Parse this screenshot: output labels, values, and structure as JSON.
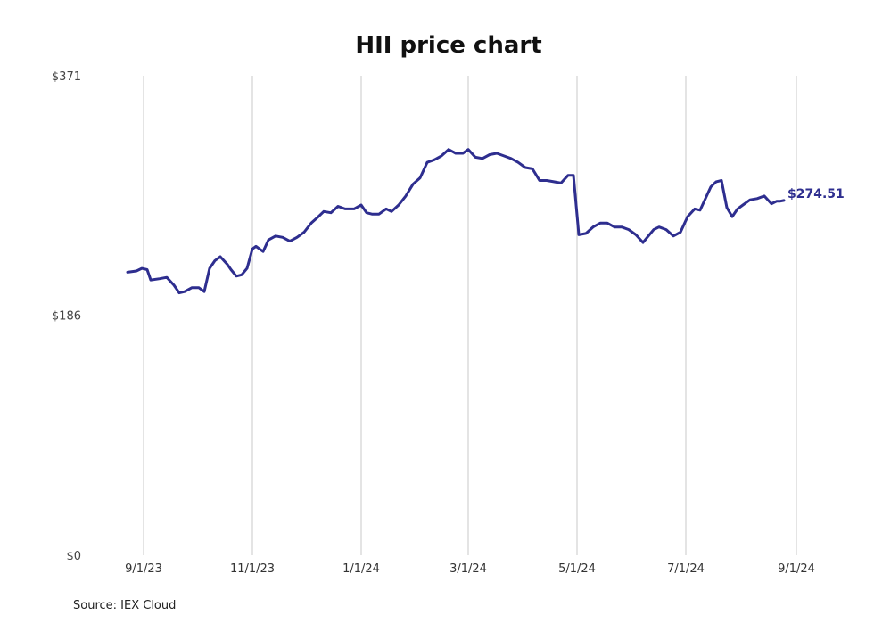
{
  "chart_data": {
    "type": "line",
    "title": "HII price chart",
    "source": "Source: IEX Cloud",
    "xlabel": "",
    "ylabel": "",
    "ylim": [
      0,
      371
    ],
    "y_ticks": [
      {
        "value": 371,
        "label": "$371"
      },
      {
        "value": 186,
        "label": "$186"
      },
      {
        "value": 0,
        "label": "$0"
      }
    ],
    "xlim": [
      "2023-08-18",
      "2024-09-01"
    ],
    "x_ticks": [
      {
        "date": "2023-09-01",
        "label": "9/1/23"
      },
      {
        "date": "2023-11-01",
        "label": "11/1/23"
      },
      {
        "date": "2024-01-01",
        "label": "1/1/24"
      },
      {
        "date": "2024-03-01",
        "label": "3/1/24"
      },
      {
        "date": "2024-05-01",
        "label": "5/1/24"
      },
      {
        "date": "2024-07-01",
        "label": "7/1/24"
      },
      {
        "date": "2024-09-01",
        "label": "9/1/24"
      }
    ],
    "grid": "vertical",
    "line_color": "#2e2e8f",
    "last_value_label": "$274.51",
    "series": [
      {
        "x": [
          "2023-08-23",
          "2023-08-28",
          "2023-08-31",
          "2023-09-03",
          "2023-09-05",
          "2023-09-10",
          "2023-09-14",
          "2023-09-18",
          "2023-09-21",
          "2023-09-24",
          "2023-09-28",
          "2023-10-02",
          "2023-10-05",
          "2023-10-08",
          "2023-10-11",
          "2023-10-14",
          "2023-10-18",
          "2023-10-20",
          "2023-10-23",
          "2023-10-26",
          "2023-10-29",
          "2023-11-01",
          "2023-11-03",
          "2023-11-07",
          "2023-11-10",
          "2023-11-14",
          "2023-11-18",
          "2023-11-22",
          "2023-11-26",
          "2023-11-30",
          "2023-12-04",
          "2023-12-08",
          "2023-12-11",
          "2023-12-15",
          "2023-12-19",
          "2023-12-23",
          "2023-12-28",
          "2024-01-01",
          "2024-01-04",
          "2024-01-07",
          "2024-01-11",
          "2024-01-15",
          "2024-01-18",
          "2024-01-22",
          "2024-01-26",
          "2024-01-30",
          "2024-02-03",
          "2024-02-07",
          "2024-02-11",
          "2024-02-15",
          "2024-02-19",
          "2024-02-23",
          "2024-02-27",
          "2024-03-01",
          "2024-03-05",
          "2024-03-09",
          "2024-03-13",
          "2024-03-17",
          "2024-03-21",
          "2024-03-25",
          "2024-03-29",
          "2024-04-02",
          "2024-04-06",
          "2024-04-10",
          "2024-04-14",
          "2024-04-18",
          "2024-04-22",
          "2024-04-26",
          "2024-04-29",
          "2024-05-02",
          "2024-05-06",
          "2024-05-10",
          "2024-05-14",
          "2024-05-18",
          "2024-05-22",
          "2024-05-26",
          "2024-05-30",
          "2024-06-03",
          "2024-06-07",
          "2024-06-10",
          "2024-06-13",
          "2024-06-16",
          "2024-06-20",
          "2024-06-24",
          "2024-06-28",
          "2024-07-02",
          "2024-07-06",
          "2024-07-09",
          "2024-07-12",
          "2024-07-15",
          "2024-07-18",
          "2024-07-21",
          "2024-07-24",
          "2024-07-27",
          "2024-07-30",
          "2024-08-02",
          "2024-08-06",
          "2024-08-10",
          "2024-08-14",
          "2024-08-18",
          "2024-08-21",
          "2024-08-23",
          "2024-08-25"
        ],
        "values": [
          219,
          220,
          222,
          221,
          213,
          214,
          215,
          209,
          203,
          204,
          207,
          207,
          204,
          222,
          228,
          231,
          225,
          221,
          216,
          217,
          222,
          237,
          239,
          235,
          244,
          247,
          246,
          243,
          246,
          250,
          257,
          262,
          266,
          265,
          270,
          268,
          268,
          271,
          265,
          264,
          264,
          268,
          266,
          271,
          278,
          287,
          292,
          304,
          306,
          309,
          314,
          311,
          311,
          314,
          308,
          307,
          310,
          311,
          309,
          307,
          304,
          300,
          299,
          290,
          290,
          289,
          288,
          294,
          294,
          248,
          249,
          254,
          257,
          257,
          254,
          254,
          252,
          248,
          242,
          247,
          252,
          254,
          252,
          247,
          250,
          262,
          268,
          267,
          276,
          285,
          289,
          290,
          269,
          262,
          268,
          271,
          275,
          276,
          278,
          272,
          274,
          274,
          274.51
        ]
      }
    ]
  }
}
